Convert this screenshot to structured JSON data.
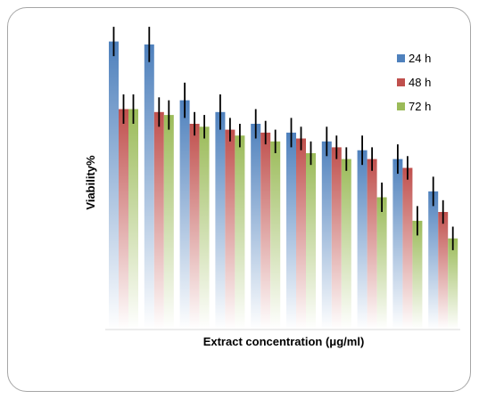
{
  "chart_data": {
    "type": "bar",
    "title": "",
    "xlabel": "Extract concentration (μg/ml)",
    "ylabel": "Viability%",
    "categories": [
      "",
      "",
      "",
      "",
      "",
      "",
      "",
      "",
      "",
      ""
    ],
    "ylim": [
      0,
      100
    ],
    "grid": false,
    "legend_position": "top-right",
    "series": [
      {
        "name": "24 h",
        "color": "#4f81bd",
        "values": [
          98,
          97,
          78,
          74,
          70,
          67,
          64,
          61,
          58,
          47
        ],
        "errors": [
          5,
          6,
          6,
          6,
          5,
          5,
          5,
          5,
          5,
          5
        ]
      },
      {
        "name": "48 h",
        "color": "#c0504d",
        "values": [
          75,
          74,
          70,
          68,
          67,
          65,
          62,
          58,
          55,
          40
        ],
        "errors": [
          5,
          5,
          4,
          4,
          4,
          4,
          4,
          4,
          4,
          4
        ]
      },
      {
        "name": "72 h",
        "color": "#9bbb59",
        "values": [
          75,
          73,
          69,
          66,
          64,
          60,
          58,
          45,
          37,
          31
        ],
        "errors": [
          5,
          5,
          4,
          4,
          4,
          4,
          4,
          5,
          5,
          4
        ]
      }
    ]
  }
}
